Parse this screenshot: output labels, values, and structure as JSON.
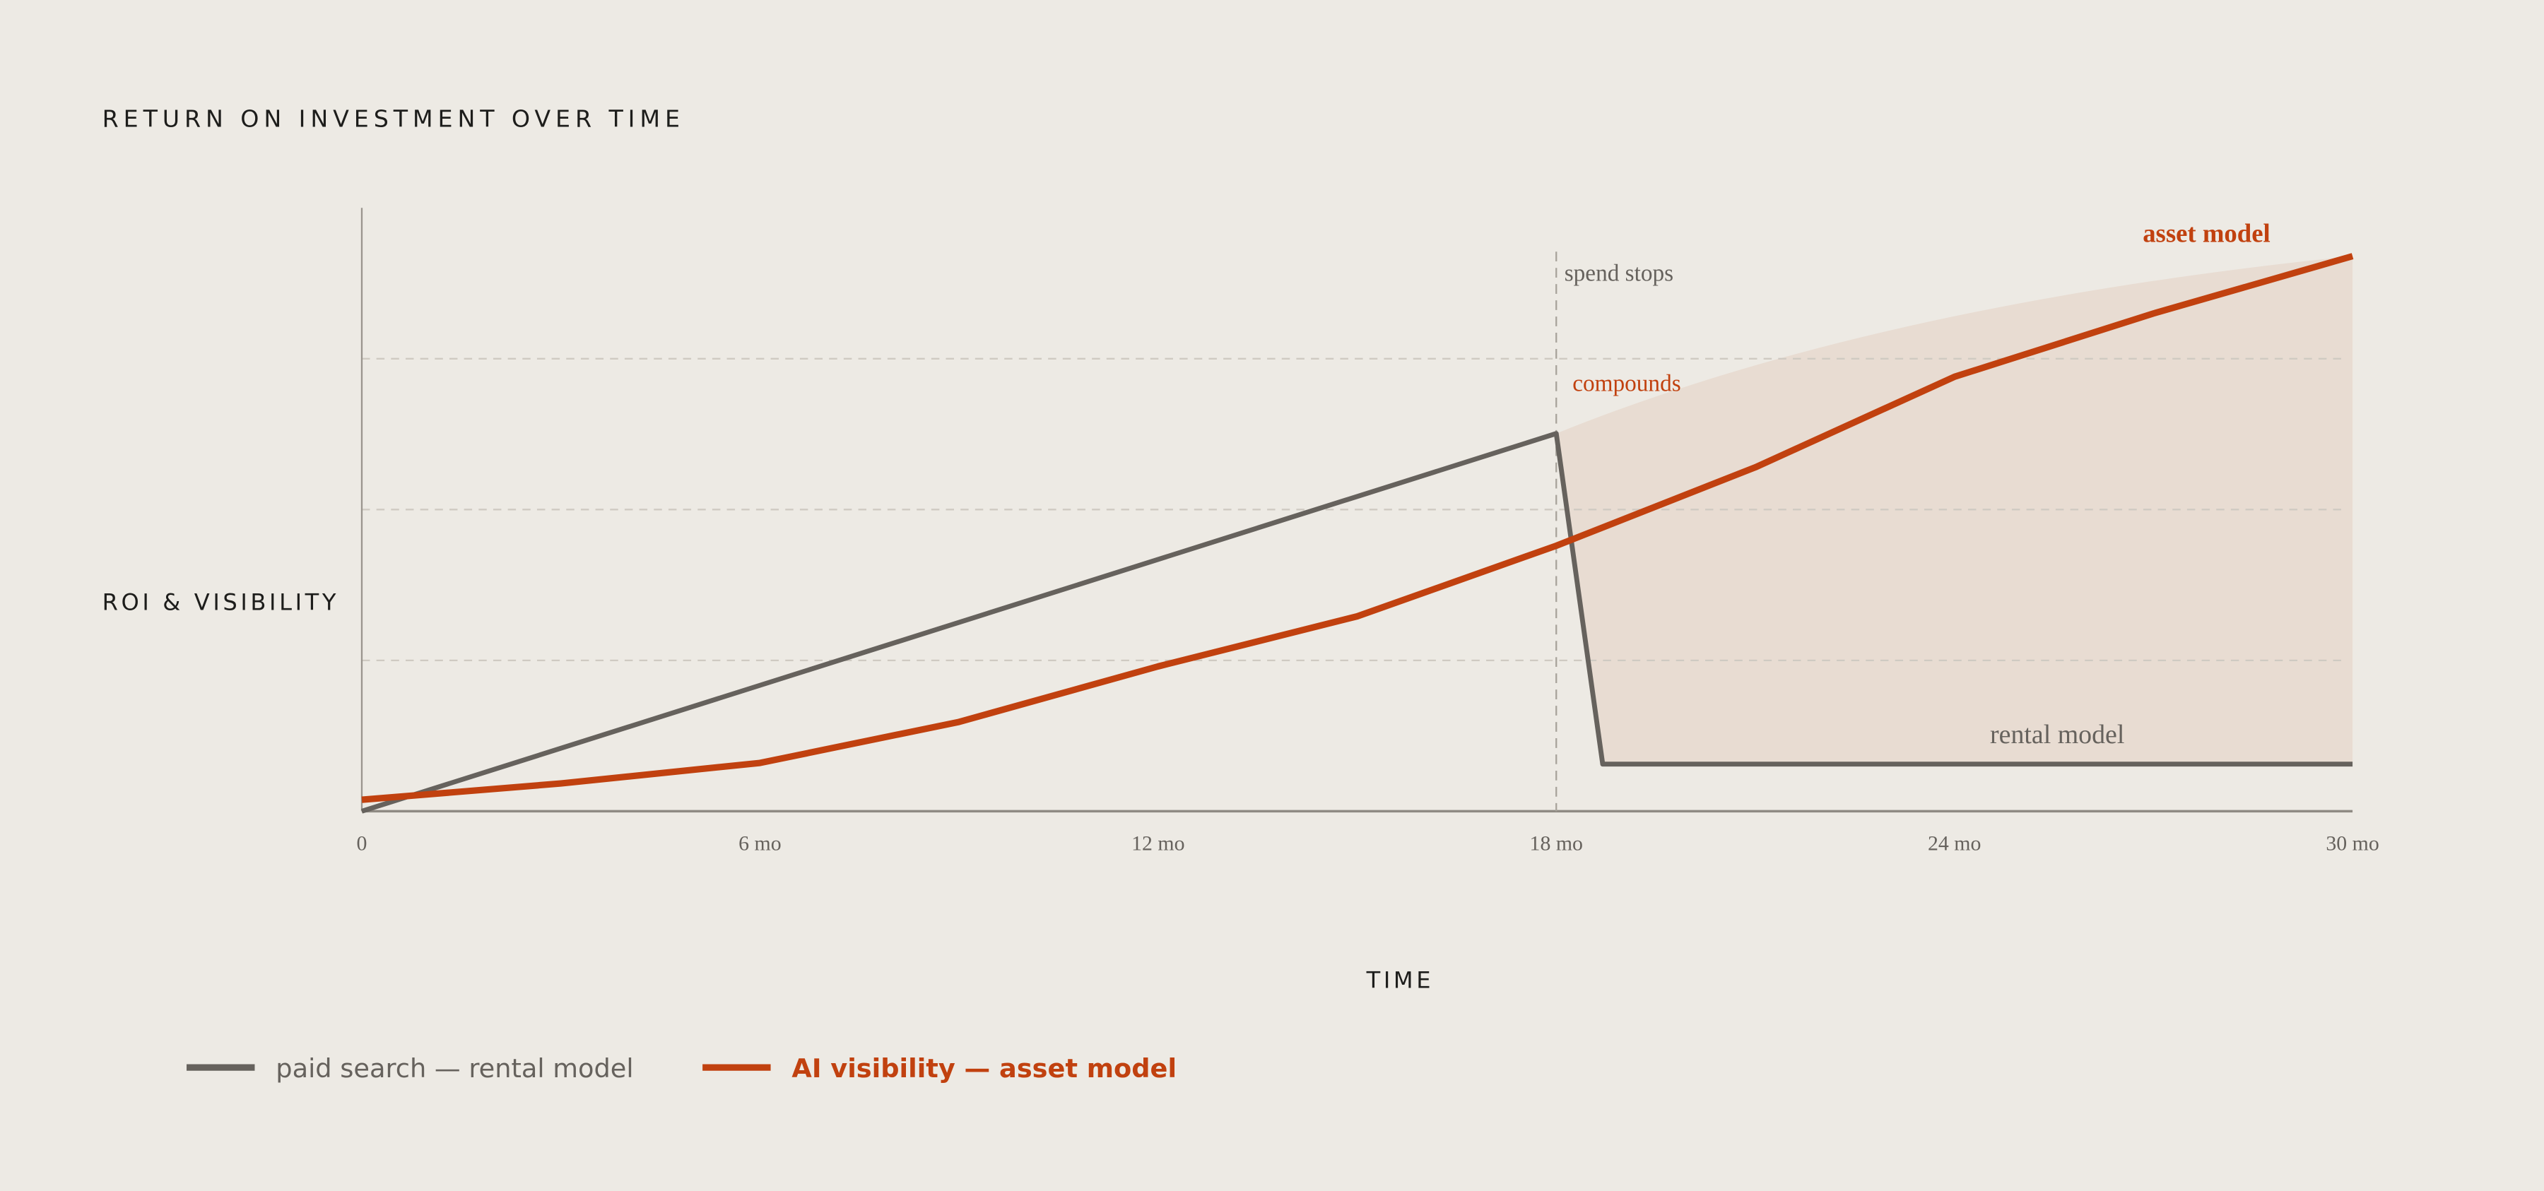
{
  "chart_data": {
    "type": "line",
    "title": "RETURN ON INVESTMENT OVER TIME",
    "y_label": "ROI & VISIBILITY",
    "x_label": "TIME",
    "xlim": [
      0,
      30
    ],
    "ylim": [
      0,
      100
    ],
    "xticks": [
      {
        "value": 0,
        "label": "0"
      },
      {
        "value": 6,
        "label": "6 mo"
      },
      {
        "value": 12,
        "label": "12 mo"
      },
      {
        "value": 18,
        "label": "18 mo"
      },
      {
        "value": 24,
        "label": "24 mo"
      },
      {
        "value": 30,
        "label": "30 mo"
      }
    ],
    "yticks": [
      25,
      50,
      75
    ],
    "grid": true,
    "series": [
      {
        "name": "paid search — rental model",
        "color": "#66625d",
        "label": "rental model",
        "x": [
          0,
          18,
          18.7,
          30
        ],
        "values": [
          0,
          62.6,
          7.8,
          7.8
        ]
      },
      {
        "name": "AI visibility — asset model",
        "color": "#c1410f",
        "label": "asset model",
        "x": [
          0,
          3,
          6,
          9,
          12,
          15,
          18,
          21,
          24,
          27,
          30
        ],
        "values": [
          1.9,
          4.6,
          8,
          14.8,
          24,
          32.3,
          44,
          57,
          72,
          82.5,
          92
        ]
      }
    ],
    "annotations": [
      "spend stops",
      "compounds"
    ]
  }
}
